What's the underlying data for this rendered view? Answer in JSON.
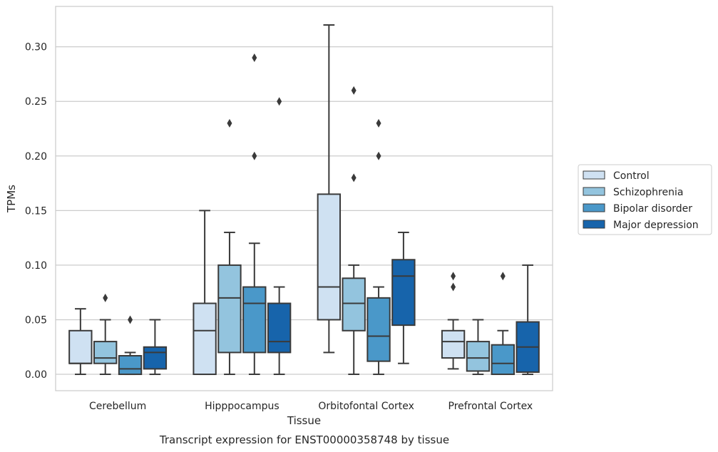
{
  "caption": "Transcript expression for ENST00000358748 by tissue",
  "chart_data": {
    "type": "box",
    "xlabel": "Tissue",
    "ylabel": "TPMs",
    "ylim": [
      -0.015,
      0.337
    ],
    "yticks": [
      0.0,
      0.05,
      0.1,
      0.15,
      0.2,
      0.25,
      0.3
    ],
    "ytick_labels": [
      "0.00",
      "0.05",
      "0.10",
      "0.15",
      "0.20",
      "0.25",
      "0.30"
    ],
    "grid": "horizontal",
    "legend_position": "right",
    "categories": [
      "Cerebellum",
      "Hipppocampus",
      "Orbitofontal Cortex",
      "Prefrontal Cortex"
    ],
    "series": [
      {
        "name": "Control",
        "color": "#cfe1f2",
        "boxes": [
          {
            "whislo": 0.0,
            "q1": 0.01,
            "med": 0.01,
            "q3": 0.04,
            "whishi": 0.06,
            "fliers": []
          },
          {
            "whislo": 0.0,
            "q1": 0.0,
            "med": 0.04,
            "q3": 0.065,
            "whishi": 0.15,
            "fliers": []
          },
          {
            "whislo": 0.02,
            "q1": 0.05,
            "med": 0.08,
            "q3": 0.165,
            "whishi": 0.32,
            "fliers": []
          },
          {
            "whislo": 0.005,
            "q1": 0.015,
            "med": 0.03,
            "q3": 0.04,
            "whishi": 0.05,
            "fliers": [
              0.08,
              0.09
            ]
          }
        ]
      },
      {
        "name": "Schizophrenia",
        "color": "#93c4de",
        "boxes": [
          {
            "whislo": 0.0,
            "q1": 0.01,
            "med": 0.015,
            "q3": 0.03,
            "whishi": 0.05,
            "fliers": [
              0.07
            ]
          },
          {
            "whislo": 0.0,
            "q1": 0.02,
            "med": 0.07,
            "q3": 0.1,
            "whishi": 0.13,
            "fliers": [
              0.23
            ]
          },
          {
            "whislo": 0.0,
            "q1": 0.04,
            "med": 0.065,
            "q3": 0.088,
            "whishi": 0.1,
            "fliers": [
              0.18,
              0.26
            ]
          },
          {
            "whislo": 0.0,
            "q1": 0.003,
            "med": 0.015,
            "q3": 0.03,
            "whishi": 0.05,
            "fliers": []
          }
        ]
      },
      {
        "name": "Bipolar disorder",
        "color": "#4a98c9",
        "boxes": [
          {
            "whislo": 0.0,
            "q1": 0.0,
            "med": 0.005,
            "q3": 0.017,
            "whishi": 0.02,
            "fliers": [
              0.05
            ]
          },
          {
            "whislo": 0.0,
            "q1": 0.02,
            "med": 0.065,
            "q3": 0.08,
            "whishi": 0.12,
            "fliers": [
              0.2,
              0.29
            ]
          },
          {
            "whislo": 0.0,
            "q1": 0.012,
            "med": 0.035,
            "q3": 0.07,
            "whishi": 0.08,
            "fliers": [
              0.2,
              0.23
            ]
          },
          {
            "whislo": 0.0,
            "q1": 0.0,
            "med": 0.01,
            "q3": 0.027,
            "whishi": 0.04,
            "fliers": [
              0.09
            ]
          }
        ]
      },
      {
        "name": "Major depression",
        "color": "#1764ab",
        "boxes": [
          {
            "whislo": 0.0,
            "q1": 0.005,
            "med": 0.02,
            "q3": 0.025,
            "whishi": 0.05,
            "fliers": []
          },
          {
            "whislo": 0.0,
            "q1": 0.02,
            "med": 0.03,
            "q3": 0.065,
            "whishi": 0.08,
            "fliers": [
              0.25
            ]
          },
          {
            "whislo": 0.01,
            "q1": 0.045,
            "med": 0.09,
            "q3": 0.105,
            "whishi": 0.13,
            "fliers": []
          },
          {
            "whislo": 0.0,
            "q1": 0.002,
            "med": 0.025,
            "q3": 0.048,
            "whishi": 0.1,
            "fliers": []
          }
        ]
      }
    ]
  }
}
